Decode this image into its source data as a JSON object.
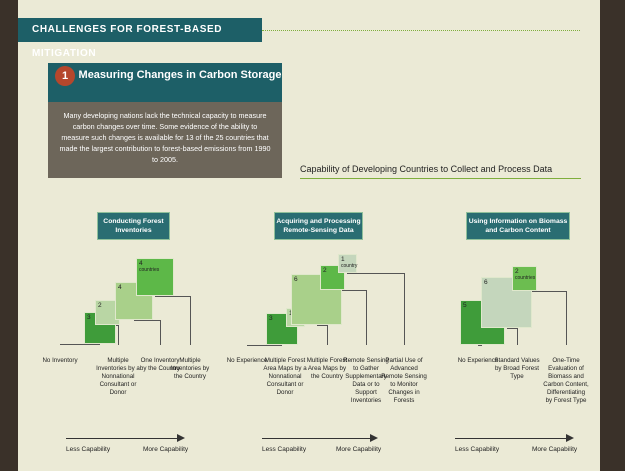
{
  "header": {
    "title": "CHALLENGES FOR FOREST-BASED MITIGATION"
  },
  "box": {
    "number": "1",
    "title": "Measuring Changes in Carbon Storage",
    "text": "Many developing nations lack the technical capacity to measure carbon changes over time. Some evidence of the ability to measure such changes is available for 13 of the 25 countries that made the largest contribution to forest-based emissions from 1990 to 2005."
  },
  "caption": "Capability of Developing Countries to Collect and Process Data",
  "panels": [
    {
      "title": "Conducting Forest Inventories",
      "squares": [
        {
          "value": 3,
          "color": "#3f9c3a"
        },
        {
          "value": 2,
          "color": "#b9d6a4"
        },
        {
          "value": 4,
          "color": "#a9d08a"
        },
        {
          "value": 4,
          "label": "countries",
          "color": "#5db848"
        }
      ],
      "categories": [
        "No Inventory",
        "Multiple Inventories by a Nonnational Consultant or Donor",
        "One Inventory by the Country",
        "Multiple Inventories by the Country"
      ],
      "less": "Less Capability",
      "more": "More Capability"
    },
    {
      "title": "Acquiring and Processing Remote-Sensing Data",
      "squares": [
        {
          "value": 3,
          "color": "#3f9c3a"
        },
        {
          "value": 1,
          "color": "#b9d6a4"
        },
        {
          "value": 6,
          "color": "#a9d08a"
        },
        {
          "value": 2,
          "color": "#5db848"
        },
        {
          "value": 1,
          "label": "country",
          "color": "#c4d6bc"
        }
      ],
      "categories": [
        "No Experience",
        "Multiple Forest Area Maps by a Nonnational Consultant or Donor",
        "Multiple Forest Area Maps by the Country",
        "Remote Sensing to Gather Supplementary Data or to Support Inventories",
        "Partial Use of Advanced Remote Sensing to Monitor Changes in Forests"
      ],
      "less": "Less Capability",
      "more": "More Capability"
    },
    {
      "title": "Using Information on Biomass and Carbon Content",
      "squares": [
        {
          "value": 5,
          "color": "#3f9c3a"
        },
        {
          "value": 6,
          "color": "#c4d6bc"
        },
        {
          "value": 2,
          "label": "countries",
          "color": "#6cbd50"
        }
      ],
      "categories": [
        "No Experience",
        "Standard Values by Broad Forest Type",
        "One-Time Evaluation of Biomass and Carbon Content, Differentiating by Forest Type"
      ],
      "less": "Less Capability",
      "more": "More Capability"
    }
  ]
}
